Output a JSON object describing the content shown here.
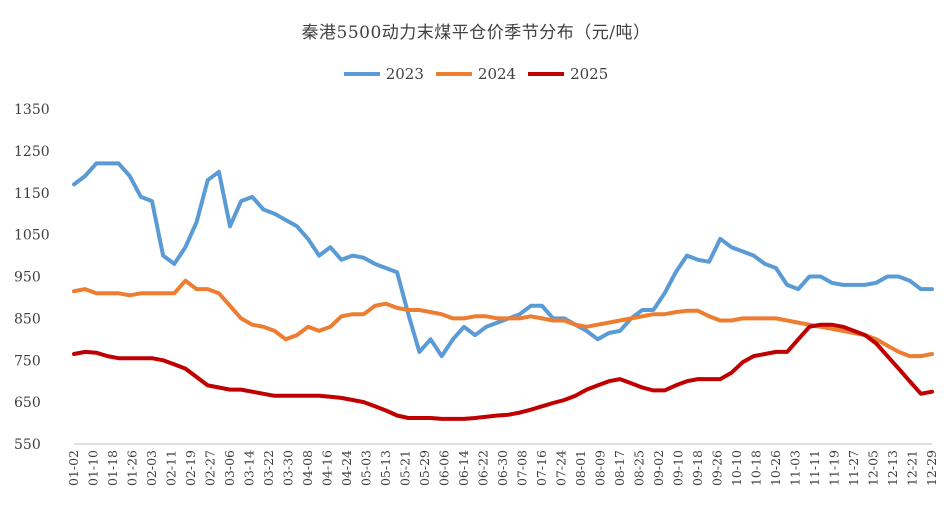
{
  "chart_data": {
    "type": "line",
    "title": "秦港5500动力末煤平仓价季节分布（元/吨）",
    "xlabel": "",
    "ylabel": "",
    "ylim": [
      550,
      1350
    ],
    "yticks": [
      550,
      650,
      750,
      850,
      950,
      1050,
      1150,
      1250,
      1350
    ],
    "grid": false,
    "legend_position": "top",
    "x_tick_labels": [
      "01-02",
      "01-10",
      "01-18",
      "01-26",
      "02-03",
      "02-11",
      "02-19",
      "02-27",
      "03-06",
      "03-14",
      "03-22",
      "03-30",
      "04-08",
      "04-16",
      "04-24",
      "05-03",
      "05-13",
      "05-21",
      "05-29",
      "06-06",
      "06-14",
      "06-22",
      "06-30",
      "07-08",
      "07-16",
      "07-24",
      "08-01",
      "08-09",
      "08-17",
      "08-25",
      "09-02",
      "09-10",
      "09-18",
      "09-26",
      "10-10",
      "10-18",
      "10-26",
      "11-03",
      "11-11",
      "11-19",
      "11-27",
      "12-05",
      "12-13",
      "12-21",
      "12-29"
    ],
    "series": [
      {
        "name": "2023",
        "color": "#5b9bd5",
        "values": [
          1170,
          1190,
          1220,
          1220,
          1220,
          1190,
          1140,
          1130,
          1000,
          980,
          1020,
          1080,
          1180,
          1200,
          1070,
          1130,
          1140,
          1110,
          1100,
          1085,
          1070,
          1040,
          1000,
          1020,
          990,
          1000,
          995,
          980,
          970,
          960,
          860,
          770,
          800,
          760,
          800,
          830,
          810,
          830,
          840,
          850,
          860,
          880,
          880,
          850,
          850,
          835,
          820,
          800,
          815,
          820,
          850,
          870,
          870,
          910,
          960,
          1000,
          990,
          985,
          1040,
          1020,
          1010,
          1000,
          980,
          970,
          930,
          920,
          950,
          950,
          935,
          930,
          930,
          930,
          935,
          950,
          950,
          940,
          920,
          920
        ]
      },
      {
        "name": "2024",
        "color": "#ed7d31",
        "values": [
          915,
          920,
          910,
          910,
          910,
          905,
          910,
          910,
          910,
          910,
          940,
          920,
          920,
          910,
          880,
          850,
          835,
          830,
          820,
          800,
          810,
          830,
          820,
          830,
          855,
          860,
          860,
          880,
          885,
          875,
          870,
          870,
          865,
          860,
          850,
          850,
          855,
          855,
          850,
          850,
          850,
          855,
          850,
          845,
          845,
          835,
          830,
          835,
          840,
          845,
          850,
          855,
          860,
          860,
          865,
          868,
          868,
          855,
          845,
          845,
          850,
          850,
          850,
          850,
          845,
          840,
          835,
          830,
          825,
          820,
          815,
          810,
          800,
          785,
          770,
          760,
          760,
          765
        ]
      },
      {
        "name": "2025",
        "color": "#c00000",
        "values": [
          765,
          770,
          768,
          760,
          755,
          755,
          755,
          755,
          750,
          740,
          730,
          710,
          690,
          685,
          680,
          680,
          675,
          670,
          665,
          665,
          665,
          665,
          665,
          663,
          660,
          655,
          650,
          640,
          630,
          618,
          612,
          612,
          612,
          610,
          610,
          610,
          612,
          615,
          618,
          620,
          625,
          632,
          640,
          648,
          655,
          665,
          680,
          690,
          700,
          705,
          695,
          685,
          678,
          678,
          690,
          700,
          705,
          705,
          705,
          720,
          745,
          760,
          765,
          770,
          770,
          800,
          830,
          835,
          835,
          830,
          820,
          810,
          790,
          760,
          730,
          700,
          670,
          675
        ]
      }
    ]
  }
}
